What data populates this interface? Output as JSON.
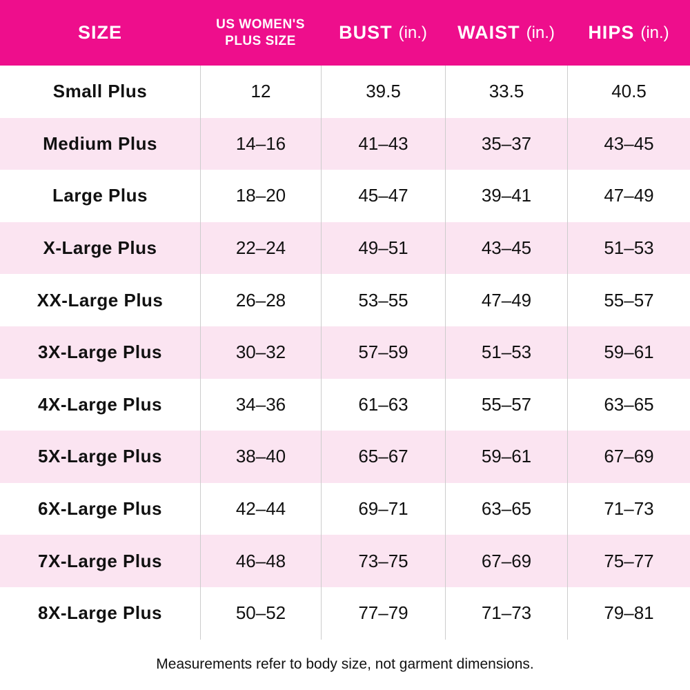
{
  "chart_data": {
    "type": "table",
    "columns": [
      "SIZE",
      "US WOMEN'S PLUS SIZE",
      "BUST (in.)",
      "WAIST (in.)",
      "HIPS (in.)"
    ],
    "rows": [
      [
        "Small Plus",
        "12",
        "39.5",
        "33.5",
        "40.5"
      ],
      [
        "Medium Plus",
        "14–16",
        "41–43",
        "35–37",
        "43–45"
      ],
      [
        "Large Plus",
        "18–20",
        "45–47",
        "39–41",
        "47–49"
      ],
      [
        "X-Large Plus",
        "22–24",
        "49–51",
        "43–45",
        "51–53"
      ],
      [
        "XX-Large Plus",
        "26–28",
        "53–55",
        "47–49",
        "55–57"
      ],
      [
        "3X-Large Plus",
        "30–32",
        "57–59",
        "51–53",
        "59–61"
      ],
      [
        "4X-Large Plus",
        "34–36",
        "61–63",
        "55–57",
        "63–65"
      ],
      [
        "5X-Large Plus",
        "38–40",
        "65–67",
        "59–61",
        "67–69"
      ],
      [
        "6X-Large Plus",
        "42–44",
        "69–71",
        "63–65",
        "71–73"
      ],
      [
        "7X-Large Plus",
        "46–48",
        "73–75",
        "67–69",
        "75–77"
      ],
      [
        "8X-Large Plus",
        "50–52",
        "77–79",
        "71–73",
        "79–81"
      ]
    ],
    "note": "Measurements refer to body size, not garment dimensions."
  },
  "header": {
    "size": "SIZE",
    "us_line1": "US WOMEN'S",
    "us_line2": "PLUS SIZE",
    "bust": "BUST",
    "waist": "WAIST",
    "hips": "HIPS",
    "unit": "(in.)"
  },
  "footer": {
    "note": "Measurements refer to body size, not garment dimensions."
  },
  "colors": {
    "header_bg": "#EE0E8C",
    "header_text": "#FFFFFF",
    "row_bg": "#FFFFFF",
    "row_alt_bg": "#FBE4F1",
    "divider": "#CCCCCC",
    "body_text": "#111111"
  }
}
